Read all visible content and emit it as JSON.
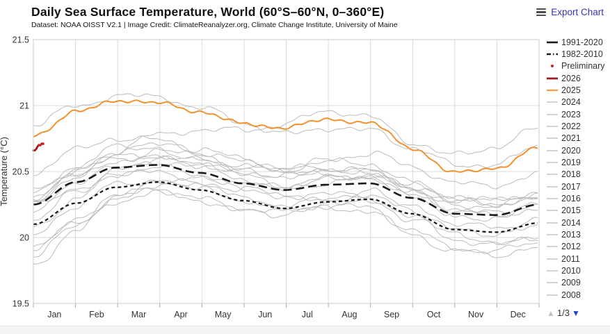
{
  "header": {
    "title": "Daily Sea Surface Temperature, World (60°S–60°N, 0–360°E)",
    "subtitle": "Dataset: NOAA OISST V2.1 | Image Credit: ClimateReanalyzer.org, Climate Change Institute, University of Maine",
    "export_label": "Export Chart"
  },
  "axes": {
    "y": {
      "title": "Temperature (°C)",
      "ticks": [
        "21.5",
        "21",
        "20.5",
        "20",
        "19.5"
      ],
      "tick_values": [
        21.5,
        21.0,
        20.5,
        20.0,
        19.5
      ],
      "min": 19.5,
      "max": 21.5
    },
    "x": {
      "months": [
        "Jan",
        "Feb",
        "Mar",
        "Apr",
        "May",
        "Jun",
        "Jul",
        "Aug",
        "Sep",
        "Oct",
        "Nov",
        "Dec"
      ]
    }
  },
  "legend": {
    "items": [
      {
        "label": "1991-2020",
        "swatch": "solid",
        "color": "#1a1a1a",
        "thick": 2.6
      },
      {
        "label": "1982-2010",
        "swatch": "dashdot",
        "color": "#1a1a1a",
        "thick": 2.4
      },
      {
        "label": "Preliminary",
        "swatch": "dot",
        "color": "#cc2020",
        "thick": 2
      },
      {
        "label": "2026",
        "swatch": "solid",
        "color": "#9e1a1a",
        "thick": 2.8
      },
      {
        "label": "2025",
        "swatch": "solid",
        "color": "#f2a24e",
        "thick": 2.4
      },
      {
        "label": "2024",
        "swatch": "solid",
        "color": "#b7b7b7",
        "thick": 1.2
      },
      {
        "label": "2023",
        "swatch": "solid",
        "color": "#b7b7b7",
        "thick": 1.2
      },
      {
        "label": "2022",
        "swatch": "solid",
        "color": "#b7b7b7",
        "thick": 1.2
      },
      {
        "label": "2021",
        "swatch": "solid",
        "color": "#b7b7b7",
        "thick": 1.2
      },
      {
        "label": "2020",
        "swatch": "solid",
        "color": "#b7b7b7",
        "thick": 1.2
      },
      {
        "label": "2019",
        "swatch": "solid",
        "color": "#b7b7b7",
        "thick": 1.2
      },
      {
        "label": "2018",
        "swatch": "solid",
        "color": "#b7b7b7",
        "thick": 1.2
      },
      {
        "label": "2017",
        "swatch": "solid",
        "color": "#b7b7b7",
        "thick": 1.2
      },
      {
        "label": "2016",
        "swatch": "solid",
        "color": "#b7b7b7",
        "thick": 1.2
      },
      {
        "label": "2015",
        "swatch": "solid",
        "color": "#b7b7b7",
        "thick": 1.2
      },
      {
        "label": "2014",
        "swatch": "solid",
        "color": "#b7b7b7",
        "thick": 1.2
      },
      {
        "label": "2013",
        "swatch": "solid",
        "color": "#b7b7b7",
        "thick": 1.2
      },
      {
        "label": "2012",
        "swatch": "solid",
        "color": "#b7b7b7",
        "thick": 1.2
      },
      {
        "label": "2011",
        "swatch": "solid",
        "color": "#b7b7b7",
        "thick": 1.2
      },
      {
        "label": "2010",
        "swatch": "solid",
        "color": "#b7b7b7",
        "thick": 1.2
      },
      {
        "label": "2009",
        "swatch": "solid",
        "color": "#b7b7b7",
        "thick": 1.2
      },
      {
        "label": "2008",
        "swatch": "solid",
        "color": "#b7b7b7",
        "thick": 1.2
      }
    ],
    "pagination": {
      "up_symbol": "▲",
      "label": "1/3",
      "down_symbol": "▼",
      "up_color": "#c2c2c2",
      "down_color": "#1e46c8"
    }
  },
  "chart_data": {
    "type": "line",
    "title": "Daily Sea Surface Temperature, World (60°S–60°N, 0–360°E)",
    "xlabel": "",
    "ylabel": "Temperature (°C)",
    "ylim": [
      19.5,
      21.5
    ],
    "grid": true,
    "legend_position": "right",
    "x_anchor_days": [
      0,
      31,
      59,
      90,
      120,
      151,
      181,
      212,
      243,
      273,
      304,
      334,
      365
    ],
    "series": [
      {
        "name": "1991-2020",
        "role": "climatology",
        "color": "#1a1a1a",
        "dash": "12,6",
        "width": 2.6,
        "monthly": [
          20.25,
          20.42,
          20.53,
          20.55,
          20.49,
          20.41,
          20.36,
          20.4,
          20.41,
          20.3,
          20.18,
          20.17,
          20.25
        ]
      },
      {
        "name": "1982-2010",
        "role": "climatology",
        "color": "#1a1a1a",
        "dash": "5,4",
        "width": 2.3,
        "monthly": [
          20.1,
          20.26,
          20.38,
          20.42,
          20.36,
          20.28,
          20.22,
          20.27,
          20.29,
          20.18,
          20.06,
          20.04,
          20.11
        ]
      },
      {
        "name": "2025",
        "role": "highlight",
        "color": "#f2912d",
        "width": 2.0,
        "monthly": [
          20.78,
          20.96,
          21.04,
          21.01,
          20.95,
          20.87,
          20.84,
          20.89,
          20.86,
          20.68,
          20.5,
          20.53,
          20.67
        ]
      },
      {
        "name": "2026",
        "role": "partial",
        "color": "#9e1a1a",
        "width": 2.8,
        "days": [
          0,
          1,
          2,
          3,
          4
        ],
        "values": [
          20.66,
          20.66,
          20.67,
          20.69,
          20.7
        ],
        "preliminary": {
          "days": [
            4,
            5,
            6,
            7
          ],
          "values": [
            20.7,
            20.7,
            20.71,
            20.71
          ],
          "color": "#cc2020"
        }
      }
    ],
    "background_years": {
      "color": "#b7b7b7",
      "width": 1,
      "years": [
        {
          "name": "2024",
          "monthly": [
            20.84,
            21.0,
            21.1,
            21.07,
            20.96,
            20.86,
            20.8,
            20.85,
            20.8,
            20.66,
            20.55,
            20.58,
            20.7
          ]
        },
        {
          "name": "2023",
          "monthly": [
            20.4,
            20.52,
            20.64,
            20.76,
            20.82,
            20.84,
            20.86,
            20.94,
            20.9,
            20.74,
            20.64,
            20.68,
            20.8
          ]
        },
        {
          "name": "2022",
          "monthly": [
            20.3,
            20.47,
            20.6,
            20.62,
            20.57,
            20.49,
            20.44,
            20.48,
            20.49,
            20.37,
            20.25,
            20.24,
            20.32
          ]
        },
        {
          "name": "2021",
          "monthly": [
            20.24,
            20.42,
            20.56,
            20.59,
            20.54,
            20.46,
            20.41,
            20.45,
            20.46,
            20.34,
            20.21,
            20.19,
            20.26
          ]
        },
        {
          "name": "2020",
          "monthly": [
            20.36,
            20.54,
            20.67,
            20.7,
            20.64,
            20.56,
            20.51,
            20.55,
            20.55,
            20.43,
            20.3,
            20.27,
            20.32
          ]
        },
        {
          "name": "2019",
          "monthly": [
            20.28,
            20.47,
            20.61,
            20.64,
            20.6,
            20.52,
            20.47,
            20.51,
            20.52,
            20.4,
            20.28,
            20.27,
            20.34
          ]
        },
        {
          "name": "2018",
          "monthly": [
            20.18,
            20.38,
            20.53,
            20.57,
            20.52,
            20.44,
            20.39,
            20.43,
            20.44,
            20.31,
            20.18,
            20.16,
            20.22
          ]
        },
        {
          "name": "2017",
          "monthly": [
            20.3,
            20.48,
            20.62,
            20.65,
            20.6,
            20.52,
            20.46,
            20.5,
            20.5,
            20.38,
            20.25,
            20.23,
            20.28
          ]
        },
        {
          "name": "2016",
          "monthly": [
            20.48,
            20.64,
            20.75,
            20.76,
            20.68,
            20.58,
            20.51,
            20.53,
            20.52,
            20.39,
            20.27,
            20.25,
            20.3
          ]
        },
        {
          "name": "2015",
          "monthly": [
            20.28,
            20.46,
            20.6,
            20.64,
            20.62,
            20.57,
            20.54,
            20.6,
            20.62,
            20.52,
            20.42,
            20.42,
            20.48
          ]
        },
        {
          "name": "2014",
          "monthly": [
            20.1,
            20.3,
            20.46,
            20.52,
            20.48,
            20.42,
            20.38,
            20.43,
            20.45,
            20.33,
            20.2,
            20.18,
            20.24
          ]
        },
        {
          "name": "2013",
          "monthly": [
            20.0,
            20.22,
            20.4,
            20.46,
            20.42,
            20.35,
            20.3,
            20.34,
            20.35,
            20.22,
            20.09,
            20.06,
            20.12
          ]
        },
        {
          "name": "2012",
          "monthly": [
            19.9,
            20.14,
            20.33,
            20.4,
            20.36,
            20.28,
            20.23,
            20.27,
            20.28,
            20.14,
            20.0,
            19.96,
            20.02
          ]
        },
        {
          "name": "2011",
          "monthly": [
            19.88,
            20.1,
            20.28,
            20.35,
            20.31,
            20.24,
            20.19,
            20.22,
            20.22,
            20.08,
            19.93,
            19.88,
            19.94
          ]
        },
        {
          "name": "2010",
          "monthly": [
            20.12,
            20.32,
            20.48,
            20.52,
            20.46,
            20.36,
            20.28,
            20.3,
            20.28,
            20.14,
            20.0,
            19.96,
            20.0
          ]
        },
        {
          "name": "2009",
          "monthly": [
            19.92,
            20.14,
            20.32,
            20.4,
            20.37,
            20.3,
            20.26,
            20.31,
            20.33,
            20.2,
            20.07,
            20.05,
            20.12
          ]
        },
        {
          "name": "2008",
          "monthly": [
            19.82,
            20.05,
            20.25,
            20.33,
            20.3,
            20.22,
            20.17,
            20.2,
            20.2,
            20.05,
            19.9,
            19.85,
            19.9
          ]
        }
      ]
    }
  }
}
